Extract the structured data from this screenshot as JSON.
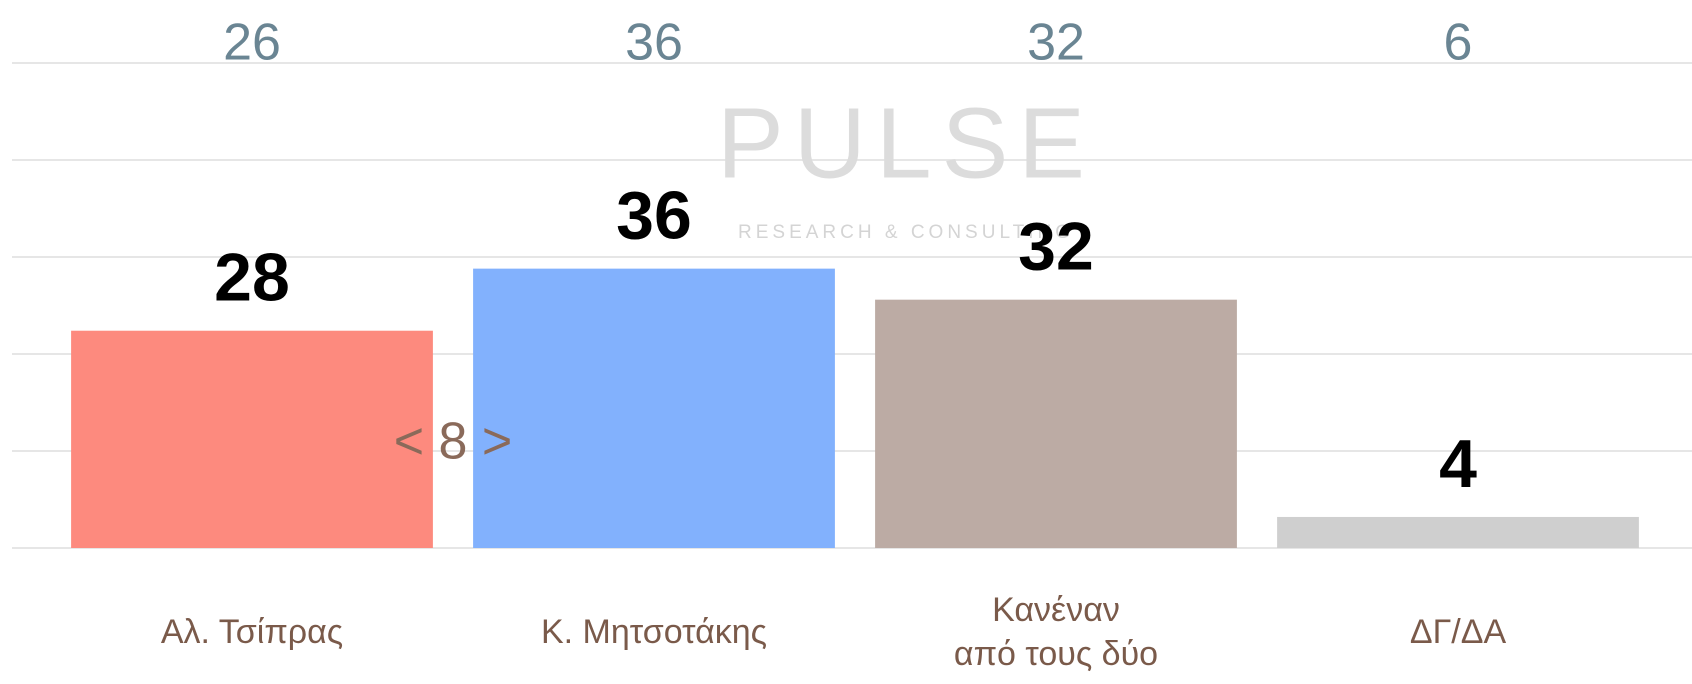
{
  "chart_data": {
    "type": "bar",
    "categories": [
      "Αλ. Τσίπρας",
      "Κ. Μητσοτάκης",
      "Κανέναν\nαπό τους δύο",
      "ΔΓ/ΔΑ"
    ],
    "values": [
      28,
      36,
      32,
      4
    ],
    "previous_values": [
      26,
      36,
      32,
      6
    ],
    "colors": [
      "#fd8a7e",
      "#82b1fd",
      "#bcaba4",
      "#cfcfcf"
    ],
    "ylim": [
      0,
      62.5
    ],
    "yticks": [
      0,
      12.5,
      25,
      37.5,
      50,
      62.5
    ],
    "grid": true,
    "annotation": "< 8 >",
    "watermark": {
      "title": "PULSE",
      "subtitle": "RESEARCH & CONSULTING"
    }
  }
}
